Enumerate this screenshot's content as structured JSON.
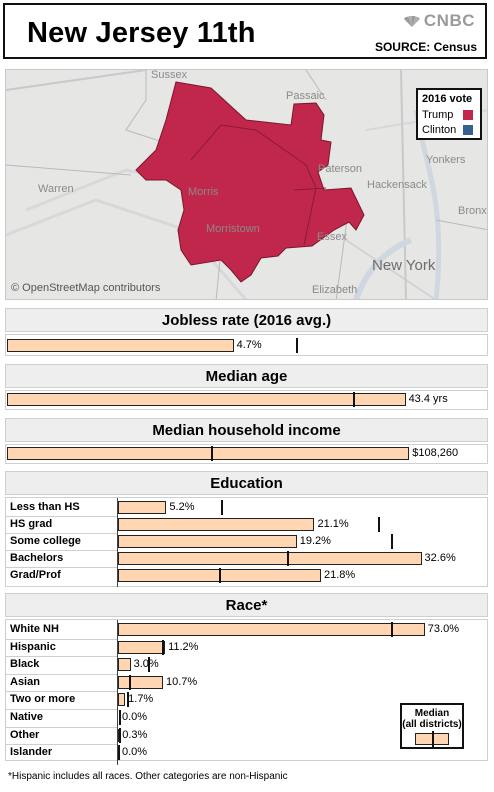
{
  "header": {
    "title": "New Jersey 11th",
    "brand": "CNBC",
    "source": "SOURCE: Census"
  },
  "map": {
    "attribution": "© OpenStreetMap contributors",
    "legend": {
      "title": "2016 vote",
      "items": [
        {
          "label": "Trump",
          "color": "#c1274b"
        },
        {
          "label": "Clinton",
          "color": "#35608f"
        }
      ]
    },
    "winner": "Trump",
    "places": [
      "Sussex",
      "Passaic",
      "Warren",
      "Yonkers",
      "Paterson",
      "Hackensack",
      "Bronx",
      "Morris",
      "Morristown",
      "Essex",
      "New York",
      "Elizabeth"
    ]
  },
  "colors": {
    "bar_fill": "#ffd6b1",
    "bar_border": "#222222",
    "trump": "#c1274b",
    "clinton": "#35608f"
  },
  "chart_data": [
    {
      "type": "bar",
      "title": "Jobless rate (2016 avg.)",
      "series": [
        {
          "values": [
            4.7
          ]
        }
      ],
      "labels": [
        "4.7%"
      ],
      "median": 6.0,
      "xlim": [
        0,
        8.4
      ]
    },
    {
      "type": "bar",
      "title": "Median age",
      "series": [
        {
          "values": [
            43.4
          ]
        }
      ],
      "labels": [
        "43.4 yrs"
      ],
      "median": 37.7,
      "xlim": [
        0,
        44.1
      ]
    },
    {
      "type": "bar",
      "title": "Median household income",
      "series": [
        {
          "values": [
            108260
          ]
        }
      ],
      "labels": [
        "$108,260"
      ],
      "median": 55000,
      "xlim": [
        0,
        109000
      ]
    },
    {
      "type": "bar",
      "title": "Education",
      "categories": [
        "Less than HS",
        "HS grad",
        "Some college",
        "Bachelors",
        "Grad/Prof"
      ],
      "series": [
        {
          "values": [
            5.2,
            21.1,
            19.2,
            32.6,
            21.8
          ]
        }
      ],
      "labels": [
        "5.2%",
        "21.1%",
        "19.2%",
        "32.6%",
        "21.8%"
      ],
      "medians": [
        11.1,
        27.9,
        29.3,
        18.2,
        10.9
      ],
      "xlim": [
        0,
        33.4
      ]
    },
    {
      "type": "bar",
      "title": "Race*",
      "categories": [
        "White NH",
        "Hispanic",
        "Black",
        "Asian",
        "Two or more",
        "Native",
        "Other",
        "Islander"
      ],
      "series": [
        {
          "values": [
            73.0,
            11.2,
            3.0,
            10.7,
            1.7,
            0.0,
            0.3,
            0.0
          ]
        }
      ],
      "labels": [
        "73.0%",
        "11.2%",
        "3.0%",
        "10.7%",
        "1.7%",
        "0.0%",
        "0.3%",
        "0.0%"
      ],
      "medians": [
        65.0,
        10.5,
        7.1,
        2.5,
        2.2,
        0.2,
        0.2,
        0.1
      ],
      "xlim": [
        0,
        74.0
      ]
    }
  ],
  "median_legend": {
    "title": "Median\n(all districts)"
  },
  "footnote": "*Hispanic includes all races. Other categories are non-Hispanic"
}
